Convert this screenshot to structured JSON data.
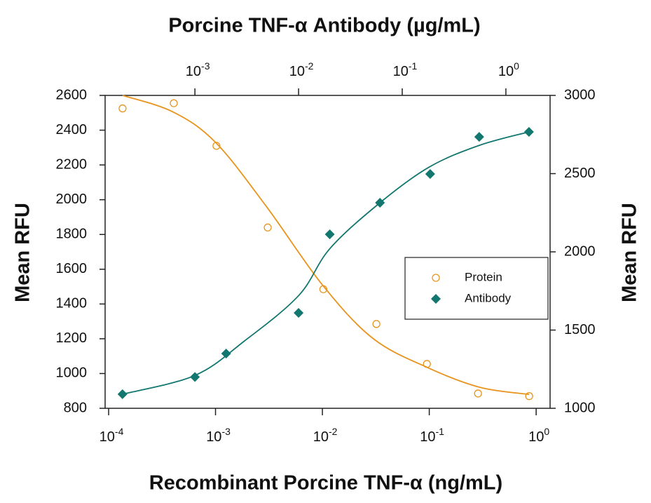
{
  "chart_data": {
    "type": "scatter",
    "title": "Porcine TNF-α Antibody (µg/mL)",
    "xlabel": "Recombinant Porcine TNF-α (ng/mL)",
    "ylabel": "Mean RFU",
    "y2label": "Mean RFU",
    "xscale": "log",
    "xlim": [
      9.27e-05,
      1.35
    ],
    "xticks": [
      {
        "value": 0.0001,
        "label": "10-4"
      },
      {
        "value": 0.001,
        "label": "10-3"
      },
      {
        "value": 0.01,
        "label": "10-2"
      },
      {
        "value": 0.1,
        "label": "10-1"
      },
      {
        "value": 1,
        "label": "100"
      }
    ],
    "x2lim": [
      0.000136,
      2.67
    ],
    "x2ticks": [
      {
        "value": 0.001,
        "label": "10-3"
      },
      {
        "value": 0.01,
        "label": "10-2"
      },
      {
        "value": 0.1,
        "label": "10-1"
      },
      {
        "value": 1,
        "label": "100"
      }
    ],
    "ylim": [
      800,
      2600
    ],
    "yticks": [
      800,
      1000,
      1200,
      1400,
      1600,
      1800,
      2000,
      2200,
      2400,
      2600
    ],
    "y2lim": [
      1000,
      3000
    ],
    "y2ticks": [
      1000,
      1500,
      2000,
      2500,
      3000
    ],
    "legend": "right",
    "series": [
      {
        "name": "Protein",
        "color": "#e8941c",
        "marker": "circle-open",
        "xaxis": "x",
        "axis": "y",
        "x": [
          0.000135,
          0.000407,
          0.00102,
          0.00308,
          0.0102,
          0.032,
          0.095,
          0.286,
          0.86
        ],
        "values": [
          2525,
          2555,
          2310,
          1840,
          1485,
          1285,
          1055,
          885,
          870
        ],
        "fit_x": [
          0.000135,
          0.0004,
          0.001,
          0.003,
          0.01,
          0.03,
          0.1,
          0.3,
          0.86
        ],
        "fit_values": [
          2600,
          2505,
          2330,
          1960,
          1510,
          1200,
          1030,
          920,
          880
        ]
      },
      {
        "name": "Antibody",
        "color": "#12776f",
        "marker": "diamond",
        "xaxis": "x2",
        "axis": "y2",
        "x": [
          0.0002,
          0.001,
          0.002,
          0.01,
          0.02,
          0.061,
          0.186,
          0.553,
          1.67
        ],
        "values": [
          1090,
          1200,
          1350,
          1610,
          2112,
          2314,
          2498,
          2735,
          2767
        ],
        "fit_x": [
          0.0002,
          0.001,
          0.003,
          0.01,
          0.02,
          0.06,
          0.18,
          0.55,
          1.67
        ],
        "fit_values": [
          1090,
          1210,
          1430,
          1720,
          2020,
          2310,
          2540,
          2680,
          2767
        ]
      }
    ]
  }
}
